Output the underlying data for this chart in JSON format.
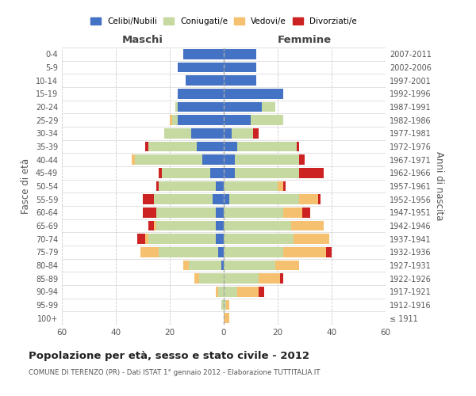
{
  "age_groups": [
    "100+",
    "95-99",
    "90-94",
    "85-89",
    "80-84",
    "75-79",
    "70-74",
    "65-69",
    "60-64",
    "55-59",
    "50-54",
    "45-49",
    "40-44",
    "35-39",
    "30-34",
    "25-29",
    "20-24",
    "15-19",
    "10-14",
    "5-9",
    "0-4"
  ],
  "birth_years": [
    "≤ 1911",
    "1912-1916",
    "1917-1921",
    "1922-1926",
    "1927-1931",
    "1932-1936",
    "1937-1941",
    "1942-1946",
    "1947-1951",
    "1952-1956",
    "1957-1961",
    "1962-1966",
    "1967-1971",
    "1972-1976",
    "1977-1981",
    "1982-1986",
    "1987-1991",
    "1992-1996",
    "1997-2001",
    "2002-2006",
    "2007-2011"
  ],
  "colors": {
    "celibi": "#4472c4",
    "coniugati": "#c5d9a0",
    "vedovi": "#f5c070",
    "divorziati": "#cc2222"
  },
  "maschi": {
    "celibi": [
      0,
      0,
      0,
      0,
      1,
      2,
      3,
      3,
      3,
      4,
      3,
      5,
      8,
      10,
      12,
      17,
      17,
      17,
      14,
      17,
      15
    ],
    "coniugati": [
      0,
      1,
      2,
      9,
      12,
      22,
      25,
      22,
      22,
      22,
      21,
      18,
      25,
      18,
      10,
      2,
      1,
      0,
      0,
      0,
      0
    ],
    "vedovi": [
      0,
      0,
      1,
      2,
      2,
      7,
      1,
      1,
      0,
      0,
      0,
      0,
      1,
      0,
      0,
      1,
      0,
      0,
      0,
      0,
      0
    ],
    "divorziati": [
      0,
      0,
      0,
      0,
      0,
      0,
      3,
      2,
      5,
      4,
      1,
      1,
      0,
      1,
      0,
      0,
      0,
      0,
      0,
      0,
      0
    ]
  },
  "femmine": {
    "celibi": [
      0,
      0,
      0,
      0,
      0,
      0,
      0,
      0,
      0,
      2,
      0,
      4,
      4,
      5,
      3,
      10,
      14,
      22,
      12,
      12,
      12
    ],
    "coniugati": [
      0,
      1,
      5,
      13,
      19,
      22,
      26,
      25,
      22,
      26,
      20,
      24,
      24,
      22,
      8,
      12,
      5,
      0,
      0,
      0,
      0
    ],
    "vedovi": [
      2,
      1,
      8,
      8,
      9,
      16,
      13,
      12,
      7,
      7,
      2,
      0,
      0,
      0,
      0,
      0,
      0,
      0,
      0,
      0,
      0
    ],
    "divorziati": [
      0,
      0,
      2,
      1,
      0,
      2,
      0,
      0,
      3,
      1,
      1,
      9,
      2,
      1,
      2,
      0,
      0,
      0,
      0,
      0,
      0
    ]
  },
  "title": "Popolazione per età, sesso e stato civile - 2012",
  "subtitle": "COMUNE DI TERENZO (PR) - Dati ISTAT 1° gennaio 2012 - Elaborazione TUTTITALIA.IT",
  "xlabel_left": "Maschi",
  "xlabel_right": "Femmine",
  "ylabel_left": "Fasce di età",
  "ylabel_right": "Anni di nascita",
  "xlim": 60,
  "legend_labels": [
    "Celibi/Nubili",
    "Coniugati/e",
    "Vedovi/e",
    "Divorziati/e"
  ]
}
